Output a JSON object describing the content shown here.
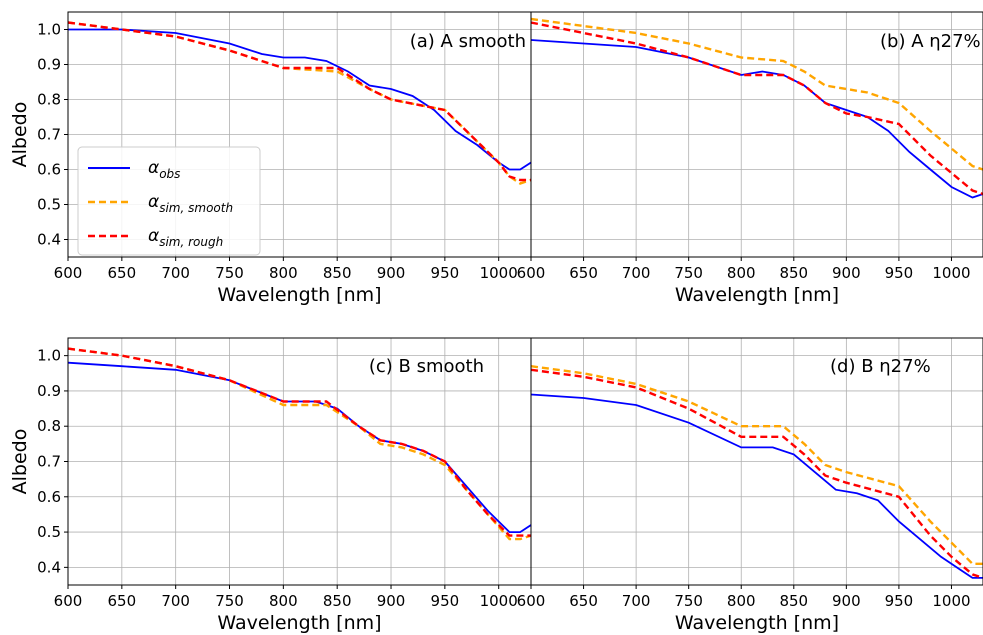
{
  "chart_data": [
    {
      "type": "line",
      "panel": "a",
      "title": "(a) A smooth",
      "xlabel": "Wavelength [nm]",
      "ylabel": "Albedo",
      "xlim": [
        600,
        1030
      ],
      "ylim": [
        0.35,
        1.05
      ],
      "xticks": [
        "600",
        "650",
        "700",
        "750",
        "800",
        "850",
        "900",
        "950",
        "1000"
      ],
      "yticks": [
        "0.4",
        "0.5",
        "0.6",
        "0.7",
        "0.8",
        "0.9",
        "1.0"
      ],
      "grid": true,
      "legend_position": "center-left",
      "series": [
        {
          "name": "α_obs",
          "color": "#0000ff",
          "dash": "solid",
          "x": [
            600,
            650,
            700,
            750,
            780,
            800,
            820,
            840,
            860,
            880,
            900,
            920,
            940,
            960,
            980,
            1000,
            1010,
            1020,
            1030
          ],
          "y": [
            1.0,
            1.0,
            0.99,
            0.96,
            0.93,
            0.92,
            0.92,
            0.91,
            0.88,
            0.84,
            0.83,
            0.81,
            0.77,
            0.71,
            0.67,
            0.62,
            0.6,
            0.6,
            0.62
          ]
        },
        {
          "name": "α_sim,smooth",
          "color": "#ffa500",
          "dash": "dashed",
          "x": [
            600,
            650,
            700,
            750,
            800,
            850,
            880,
            900,
            950,
            980,
            1000,
            1010,
            1020,
            1030
          ],
          "y": [
            1.02,
            1.0,
            0.98,
            0.94,
            0.89,
            0.88,
            0.83,
            0.8,
            0.77,
            0.68,
            0.62,
            0.58,
            0.56,
            0.57
          ]
        },
        {
          "name": "α_sim,rough",
          "color": "#ff0000",
          "dash": "dashed",
          "x": [
            600,
            650,
            700,
            750,
            800,
            850,
            880,
            900,
            950,
            980,
            1000,
            1010,
            1020,
            1030
          ],
          "y": [
            1.02,
            1.0,
            0.98,
            0.94,
            0.89,
            0.89,
            0.83,
            0.8,
            0.77,
            0.68,
            0.62,
            0.58,
            0.57,
            0.57
          ]
        }
      ]
    },
    {
      "type": "line",
      "panel": "b",
      "title": "(b) A η27%",
      "xlabel": "Wavelength [nm]",
      "ylabel": "",
      "xlim": [
        600,
        1030
      ],
      "ylim": [
        0.35,
        1.05
      ],
      "xticks": [
        "600",
        "650",
        "700",
        "750",
        "800",
        "850",
        "900",
        "950",
        "1000"
      ],
      "yticks": [],
      "grid": true,
      "series": [
        {
          "name": "α_obs",
          "color": "#0000ff",
          "dash": "solid",
          "x": [
            600,
            650,
            700,
            750,
            800,
            820,
            840,
            860,
            880,
            900,
            920,
            940,
            960,
            980,
            1000,
            1020,
            1030
          ],
          "y": [
            0.97,
            0.96,
            0.95,
            0.92,
            0.87,
            0.88,
            0.87,
            0.84,
            0.79,
            0.77,
            0.75,
            0.71,
            0.65,
            0.6,
            0.55,
            0.52,
            0.53
          ]
        },
        {
          "name": "α_sim,smooth",
          "color": "#ffa500",
          "dash": "dashed",
          "x": [
            600,
            650,
            700,
            750,
            800,
            840,
            860,
            880,
            900,
            920,
            950,
            980,
            1000,
            1020,
            1030
          ],
          "y": [
            1.03,
            1.01,
            0.99,
            0.96,
            0.92,
            0.91,
            0.88,
            0.84,
            0.83,
            0.82,
            0.79,
            0.71,
            0.66,
            0.61,
            0.6
          ]
        },
        {
          "name": "α_sim,rough",
          "color": "#ff0000",
          "dash": "dashed",
          "x": [
            600,
            650,
            700,
            750,
            800,
            840,
            860,
            880,
            900,
            920,
            950,
            980,
            1000,
            1020,
            1030
          ],
          "y": [
            1.02,
            0.99,
            0.96,
            0.92,
            0.87,
            0.87,
            0.84,
            0.79,
            0.76,
            0.75,
            0.73,
            0.64,
            0.59,
            0.54,
            0.53
          ]
        }
      ]
    },
    {
      "type": "line",
      "panel": "c",
      "title": "(c) B smooth",
      "xlabel": "Wavelength [nm]",
      "ylabel": "Albedo",
      "xlim": [
        600,
        1030
      ],
      "ylim": [
        0.35,
        1.05
      ],
      "xticks": [
        "600",
        "650",
        "700",
        "750",
        "800",
        "850",
        "900",
        "950",
        "1000"
      ],
      "yticks": [
        "0.4",
        "0.5",
        "0.6",
        "0.7",
        "0.8",
        "0.9",
        "1.0"
      ],
      "grid": true,
      "series": [
        {
          "name": "α_obs",
          "color": "#0000ff",
          "dash": "solid",
          "x": [
            600,
            650,
            700,
            750,
            800,
            830,
            850,
            870,
            890,
            910,
            930,
            950,
            970,
            990,
            1010,
            1020,
            1030
          ],
          "y": [
            0.98,
            0.97,
            0.96,
            0.93,
            0.87,
            0.87,
            0.85,
            0.8,
            0.76,
            0.75,
            0.73,
            0.7,
            0.63,
            0.56,
            0.5,
            0.5,
            0.52
          ]
        },
        {
          "name": "α_sim,smooth",
          "color": "#ffa500",
          "dash": "dashed",
          "x": [
            600,
            650,
            700,
            750,
            800,
            840,
            870,
            890,
            910,
            930,
            950,
            970,
            990,
            1010,
            1020,
            1030
          ],
          "y": [
            1.02,
            1.0,
            0.97,
            0.93,
            0.86,
            0.86,
            0.8,
            0.75,
            0.74,
            0.72,
            0.69,
            0.62,
            0.55,
            0.48,
            0.48,
            0.49
          ]
        },
        {
          "name": "α_sim,rough",
          "color": "#ff0000",
          "dash": "dashed",
          "x": [
            600,
            650,
            700,
            750,
            800,
            840,
            870,
            890,
            910,
            930,
            950,
            970,
            990,
            1010,
            1020,
            1030
          ],
          "y": [
            1.02,
            1.0,
            0.97,
            0.93,
            0.87,
            0.87,
            0.8,
            0.76,
            0.75,
            0.73,
            0.7,
            0.62,
            0.55,
            0.49,
            0.49,
            0.49
          ]
        }
      ]
    },
    {
      "type": "line",
      "panel": "d",
      "title": "(d) B η27%",
      "xlabel": "Wavelength [nm]",
      "ylabel": "",
      "xlim": [
        600,
        1030
      ],
      "ylim": [
        0.35,
        1.05
      ],
      "xticks": [
        "600",
        "650",
        "700",
        "750",
        "800",
        "850",
        "900",
        "950",
        "1000"
      ],
      "yticks": [],
      "grid": true,
      "series": [
        {
          "name": "α_obs",
          "color": "#0000ff",
          "dash": "solid",
          "x": [
            600,
            650,
            700,
            750,
            800,
            830,
            850,
            870,
            890,
            910,
            930,
            950,
            970,
            990,
            1010,
            1020,
            1030
          ],
          "y": [
            0.89,
            0.88,
            0.86,
            0.81,
            0.74,
            0.74,
            0.72,
            0.67,
            0.62,
            0.61,
            0.59,
            0.53,
            0.48,
            0.43,
            0.39,
            0.37,
            0.37
          ]
        },
        {
          "name": "α_sim,smooth",
          "color": "#ffa500",
          "dash": "dashed",
          "x": [
            600,
            650,
            700,
            750,
            800,
            840,
            860,
            880,
            900,
            950,
            980,
            1000,
            1020,
            1030
          ],
          "y": [
            0.97,
            0.95,
            0.92,
            0.87,
            0.8,
            0.8,
            0.75,
            0.69,
            0.67,
            0.63,
            0.53,
            0.47,
            0.41,
            0.41
          ]
        },
        {
          "name": "α_sim,rough",
          "color": "#ff0000",
          "dash": "dashed",
          "x": [
            600,
            650,
            700,
            750,
            800,
            840,
            860,
            880,
            900,
            950,
            980,
            1000,
            1020,
            1030
          ],
          "y": [
            0.96,
            0.94,
            0.91,
            0.85,
            0.77,
            0.77,
            0.72,
            0.66,
            0.64,
            0.6,
            0.49,
            0.43,
            0.38,
            0.37
          ]
        }
      ]
    }
  ],
  "legend": [
    {
      "main": "α",
      "sub": "obs",
      "color": "#0000ff",
      "dash": "solid"
    },
    {
      "main": "α",
      "sub": "sim, smooth",
      "color": "#ffa500",
      "dash": "dashed"
    },
    {
      "main": "α",
      "sub": "sim, rough",
      "color": "#ff0000",
      "dash": "dashed"
    }
  ]
}
